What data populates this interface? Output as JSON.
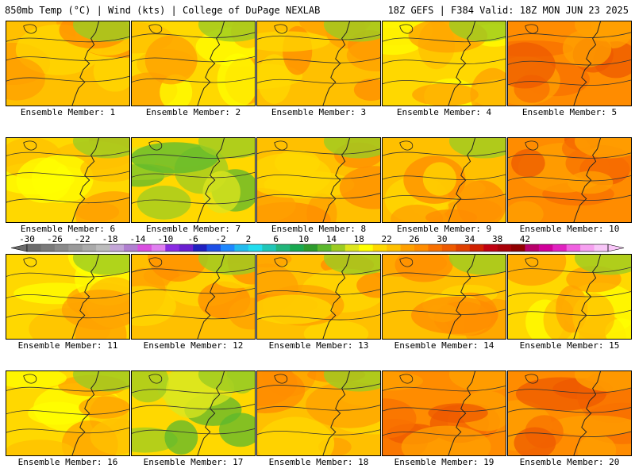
{
  "header": {
    "left": "850mb Temp (°C) | Wind (kts) | College of DuPage NEXLAB",
    "right": "18Z GEFS | F384 Valid: 18Z MON JUN 23 2025"
  },
  "map_data": {
    "type": "ensemble-panel-map",
    "variable": "850mb Temp (°C)",
    "panels": [
      {
        "label": "Ensemble Member: 1",
        "dominant": "orange"
      },
      {
        "label": "Ensemble Member: 2",
        "dominant": "yellow"
      },
      {
        "label": "Ensemble Member: 3",
        "dominant": "orange"
      },
      {
        "label": "Ensemble Member: 4",
        "dominant": "yellow"
      },
      {
        "label": "Ensemble Member: 5",
        "dominant": "dark-orange"
      },
      {
        "label": "Ensemble Member: 6",
        "dominant": "yellow"
      },
      {
        "label": "Ensemble Member: 7",
        "dominant": "yellow-green"
      },
      {
        "label": "Ensemble Member: 8",
        "dominant": "orange"
      },
      {
        "label": "Ensemble Member: 9",
        "dominant": "orange"
      },
      {
        "label": "Ensemble Member: 10",
        "dominant": "dark-orange"
      },
      {
        "label": "Ensemble Member: 11",
        "dominant": "yellow"
      },
      {
        "label": "Ensemble Member: 12",
        "dominant": "orange"
      },
      {
        "label": "Ensemble Member: 13",
        "dominant": "orange"
      },
      {
        "label": "Ensemble Member: 14",
        "dominant": "orange"
      },
      {
        "label": "Ensemble Member: 15",
        "dominant": "yellow"
      },
      {
        "label": "Ensemble Member: 16",
        "dominant": "yellow"
      },
      {
        "label": "Ensemble Member: 17",
        "dominant": "yellow-green"
      },
      {
        "label": "Ensemble Member: 18",
        "dominant": "orange"
      },
      {
        "label": "Ensemble Member: 19",
        "dominant": "dark-orange"
      },
      {
        "label": "Ensemble Member: 20",
        "dominant": "dark-orange"
      }
    ],
    "colorbar": {
      "ticks": [
        "-30",
        "-26",
        "-22",
        "-18",
        "-14",
        "-10",
        "-6",
        "-2",
        "2",
        "6",
        "10",
        "14",
        "18",
        "22",
        "26",
        "30",
        "34",
        "38",
        "42"
      ],
      "colors": [
        "#6b6b6b",
        "#7a7a7a",
        "#8a8a8a",
        "#9a9a9a",
        "#aaaaaa",
        "#bcbcbc",
        "#c4a6d8",
        "#b07fd0",
        "#d94fe0",
        "#e080f0",
        "#8a2be2",
        "#6a1fd0",
        "#2020c0",
        "#1d4fe6",
        "#1e88ff",
        "#22bbee",
        "#22ddee",
        "#20c6b8",
        "#22b57a",
        "#18a850",
        "#2e9b2e",
        "#5cb82e",
        "#9ccc22",
        "#dde61e",
        "#ffff00",
        "#ffd800",
        "#ffc000",
        "#ffa000",
        "#ff8c00",
        "#f87000",
        "#ee5a00",
        "#e04000",
        "#d02000",
        "#c00010",
        "#a80008",
        "#900000",
        "#b8006a",
        "#d0009a",
        "#e022c0",
        "#f060e0",
        "#f6a0f0",
        "#f8c6f8"
      ]
    }
  }
}
